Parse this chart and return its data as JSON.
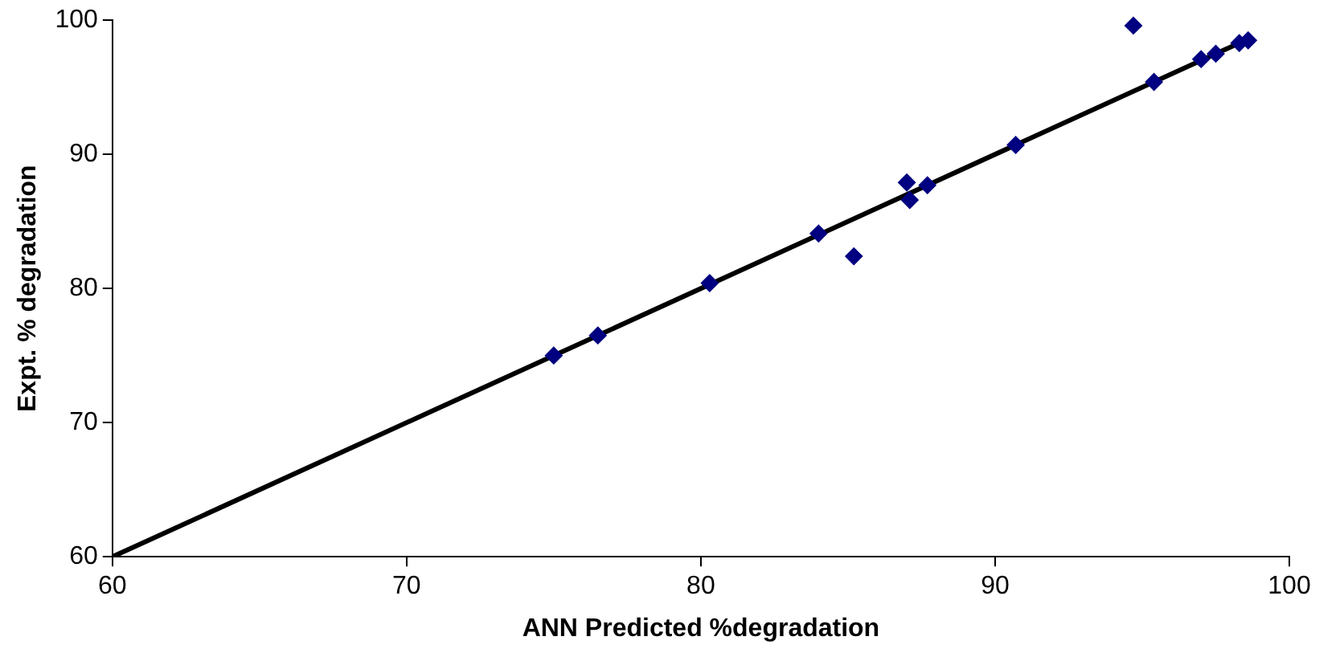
{
  "chart_data": {
    "type": "scatter",
    "xlabel": "ANN Predicted %degradation",
    "ylabel": "Expt. % degradation",
    "xlim": [
      60,
      100
    ],
    "xticks": [
      60,
      70,
      80,
      90,
      100
    ],
    "ylim": [
      60,
      100
    ],
    "yticks": [
      60,
      70,
      80,
      90,
      100
    ],
    "grid": false,
    "legend": false,
    "series": [
      {
        "marker": "diamond",
        "color": "#000080",
        "x": [
          75,
          76.5,
          80.3,
          84,
          85.2,
          87,
          87.1,
          87.7,
          90.7,
          94.7,
          95.4,
          97,
          97.5,
          98.3,
          98.6
        ],
        "values": [
          75,
          76.5,
          80.4,
          84.1,
          82.4,
          87.9,
          86.6,
          87.7,
          90.7,
          99.6,
          95.4,
          97.1,
          97.5,
          98.3,
          98.5
        ]
      },
      {
        "type": "line",
        "marker": "none",
        "color": "#000000",
        "x": [
          60,
          98.6
        ],
        "values": [
          60,
          98.6
        ]
      }
    ]
  }
}
